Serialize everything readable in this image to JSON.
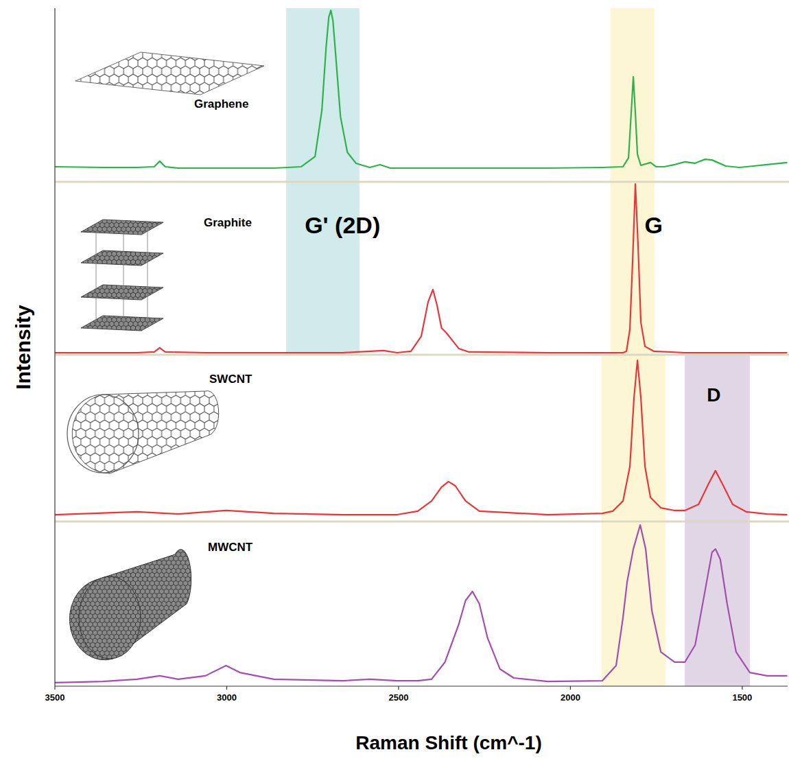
{
  "chart_data": {
    "type": "line",
    "x_label": "Raman Shift (cm^-1)",
    "y_label": "Intensity",
    "xlim": [
      3500,
      1368
    ],
    "xticks": [
      3500,
      3000,
      2500,
      2000,
      1500
    ],
    "ylim": [
      0,
      100
    ],
    "tick_labels": "x",
    "series": [
      {
        "name": "Graphene",
        "color": "#2db34a",
        "x": [
          3500,
          3361,
          3261,
          3211,
          3195,
          3179,
          3141,
          3062,
          2962,
          2863,
          2783,
          2743,
          2723,
          2711,
          2703,
          2697,
          2691,
          2683,
          2669,
          2649,
          2624,
          2584,
          2554,
          2524,
          2464,
          2265,
          2066,
          1906,
          1847,
          1831,
          1825,
          1817,
          1811,
          1805,
          1795,
          1767,
          1751,
          1727,
          1697,
          1667,
          1638,
          1608,
          1588,
          1548,
          1508,
          1468,
          1428,
          1369
        ],
        "values": [
          8.7,
          8.3,
          8.3,
          8.7,
          11.9,
          8.7,
          7.9,
          7.9,
          7.9,
          7.9,
          8.7,
          14.6,
          41.5,
          77.1,
          94.9,
          98.8,
          92.9,
          73.1,
          37.5,
          17,
          10.7,
          8.3,
          9.9,
          7.9,
          7.9,
          7.9,
          7.9,
          8.3,
          8.7,
          13.8,
          33.6,
          60.5,
          39.5,
          15.8,
          9.5,
          11.1,
          8.7,
          8.7,
          9.9,
          11.5,
          10.7,
          13,
          12.6,
          9.1,
          8.3,
          9.1,
          9.9,
          11.1
        ]
      },
      {
        "name": "Graphite",
        "color": "#e8373a",
        "x": [
          3500,
          3361,
          3261,
          3211,
          3195,
          3179,
          3062,
          2863,
          2663,
          2544,
          2504,
          2464,
          2434,
          2414,
          2400,
          2388,
          2375,
          2361,
          2345,
          2325,
          2295,
          2066,
          1907,
          1847,
          1837,
          1827,
          1819,
          1811,
          1803,
          1795,
          1783,
          1757,
          1667,
          1508,
          1369
        ],
        "values": [
          1.2,
          1.2,
          1.2,
          1.6,
          4,
          1.6,
          1.2,
          1.2,
          1.2,
          2.4,
          1.2,
          2,
          10.7,
          30.6,
          37.7,
          28.6,
          15.5,
          12.7,
          8.7,
          3.6,
          1.6,
          1.2,
          1.2,
          1.2,
          2,
          14.7,
          54.4,
          98.8,
          62.3,
          18.7,
          4.8,
          2,
          1.2,
          1.2,
          1.2
        ]
      },
      {
        "name": "SWCNT",
        "color": "#e8373a",
        "x": [
          3500,
          3261,
          3141,
          3002,
          2863,
          2663,
          2504,
          2444,
          2404,
          2375,
          2355,
          2335,
          2305,
          2265,
          2066,
          1907,
          1877,
          1847,
          1827,
          1815,
          1805,
          1795,
          1783,
          1767,
          1737,
          1697,
          1667,
          1627,
          1598,
          1578,
          1558,
          1528,
          1488,
          1428,
          1369
        ],
        "values": [
          4.1,
          5.8,
          4.5,
          6.6,
          4.9,
          4.1,
          4.1,
          6.2,
          12.3,
          20.6,
          23.9,
          21.4,
          12.3,
          6.2,
          4.1,
          4.9,
          6.2,
          12.3,
          32.9,
          74.1,
          96.7,
          74.1,
          32.9,
          14.4,
          8.2,
          6.6,
          6.6,
          10.3,
          22.6,
          30.5,
          22.6,
          10.3,
          5.8,
          4.5,
          4.1
        ]
      },
      {
        "name": "MWCNT",
        "color": "#a44fb0",
        "x": [
          3500,
          3361,
          3261,
          3195,
          3141,
          3062,
          3002,
          2962,
          2863,
          2663,
          2584,
          2504,
          2444,
          2404,
          2365,
          2325,
          2305,
          2285,
          2265,
          2241,
          2205,
          2165,
          2066,
          1907,
          1867,
          1847,
          1835,
          1817,
          1797,
          1781,
          1763,
          1737,
          1697,
          1667,
          1637,
          1608,
          1588,
          1578,
          1564,
          1544,
          1518,
          1478,
          1428,
          1369
        ],
        "values": [
          2.1,
          2.9,
          4.2,
          6.3,
          4.2,
          6.3,
          12.5,
          8.3,
          4.2,
          3.3,
          4.2,
          3.3,
          3.3,
          4.2,
          14.6,
          37.5,
          52.1,
          57.5,
          50,
          29.2,
          10.4,
          5,
          2.9,
          3.3,
          12.5,
          41.7,
          63.3,
          83.3,
          97.9,
          83.3,
          45.8,
          20.8,
          14.6,
          14.6,
          25,
          58.3,
          81.3,
          83.3,
          77.1,
          50,
          20.8,
          8.3,
          6.3,
          6.3
        ]
      }
    ],
    "bands": [
      {
        "label": "G' (2D)",
        "from": 2827,
        "to": 2614,
        "color": "#c9e6e8",
        "series": [
          "Graphene",
          "Graphite"
        ]
      },
      {
        "label": "G",
        "from": 1884,
        "to": 1755,
        "color": "#fbf5cc",
        "series": [
          "Graphene",
          "Graphite"
        ]
      },
      {
        "from": 1910,
        "to": 1723,
        "color": "#fbf5cc",
        "series": [
          "SWCNT",
          "MWCNT"
        ]
      },
      {
        "label": "D",
        "from": 1667,
        "to": 1478,
        "color": "#dccfe2",
        "series": [
          "SWCNT",
          "MWCNT"
        ]
      }
    ]
  }
}
